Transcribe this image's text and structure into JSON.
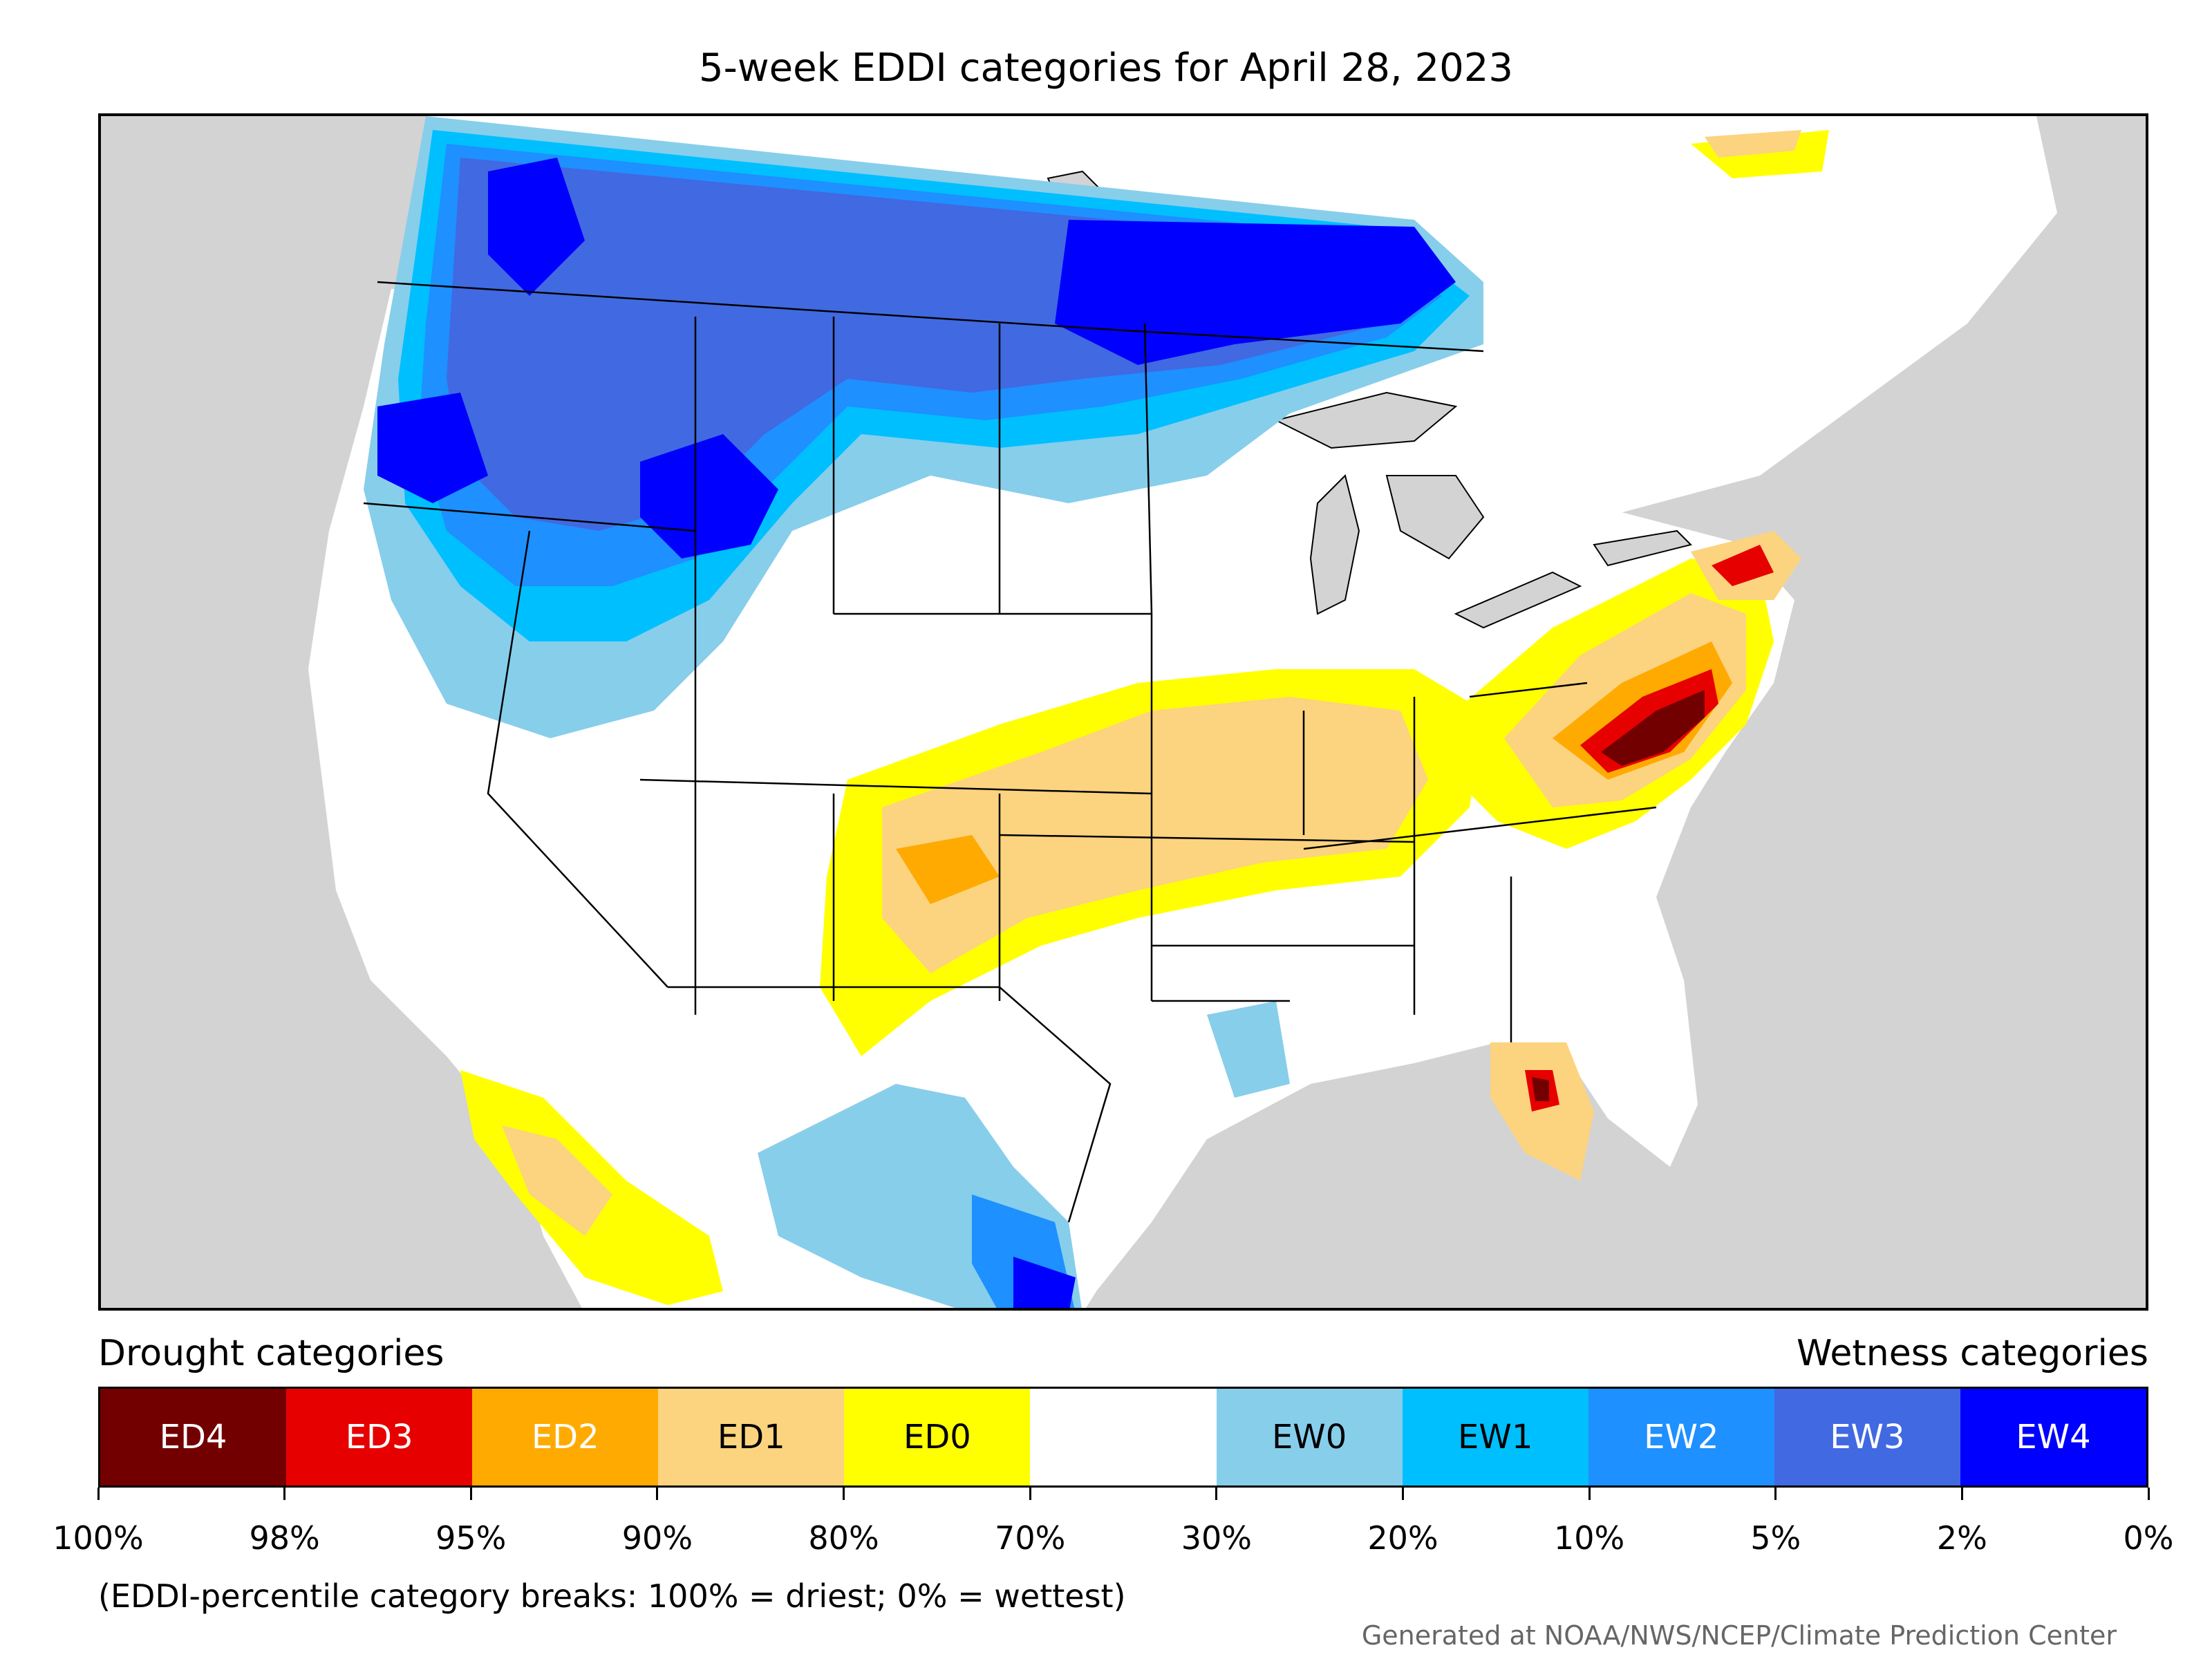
{
  "title": "5-week EDDI categories for April 28, 2023",
  "legend": {
    "drought_heading": "Drought categories",
    "wetness_heading": "Wetness categories",
    "categories": [
      {
        "label": "ED4",
        "color": "#730000",
        "text_color": "#ffffff"
      },
      {
        "label": "ED3",
        "color": "#e60000",
        "text_color": "#ffffff"
      },
      {
        "label": "ED2",
        "color": "#ffaa00",
        "text_color": "#ffffff"
      },
      {
        "label": "ED1",
        "color": "#fcd37f",
        "text_color": "#000000"
      },
      {
        "label": "ED0",
        "color": "#ffff00",
        "text_color": "#000000"
      },
      {
        "label": "",
        "color": "#ffffff",
        "text_color": "#000000"
      },
      {
        "label": "EW0",
        "color": "#87ceeb",
        "text_color": "#000000"
      },
      {
        "label": "EW1",
        "color": "#00bfff",
        "text_color": "#000000"
      },
      {
        "label": "EW2",
        "color": "#1e90ff",
        "text_color": "#ffffff"
      },
      {
        "label": "EW3",
        "color": "#4169e1",
        "text_color": "#ffffff"
      },
      {
        "label": "EW4",
        "color": "#0000ff",
        "text_color": "#ffffff"
      }
    ],
    "tick_labels": [
      "100%",
      "98%",
      "95%",
      "90%",
      "80%",
      "70%",
      "30%",
      "20%",
      "10%",
      "5%",
      "2%",
      "0%"
    ]
  },
  "footnote": "(EDDI-percentile category breaks: 100% = driest; 0% = wettest)",
  "credit": "Generated at NOAA/NWS/NCEP/Climate Prediction Center",
  "map": {
    "background_color": "#d3d3d3",
    "land_color": "#ffffff"
  }
}
